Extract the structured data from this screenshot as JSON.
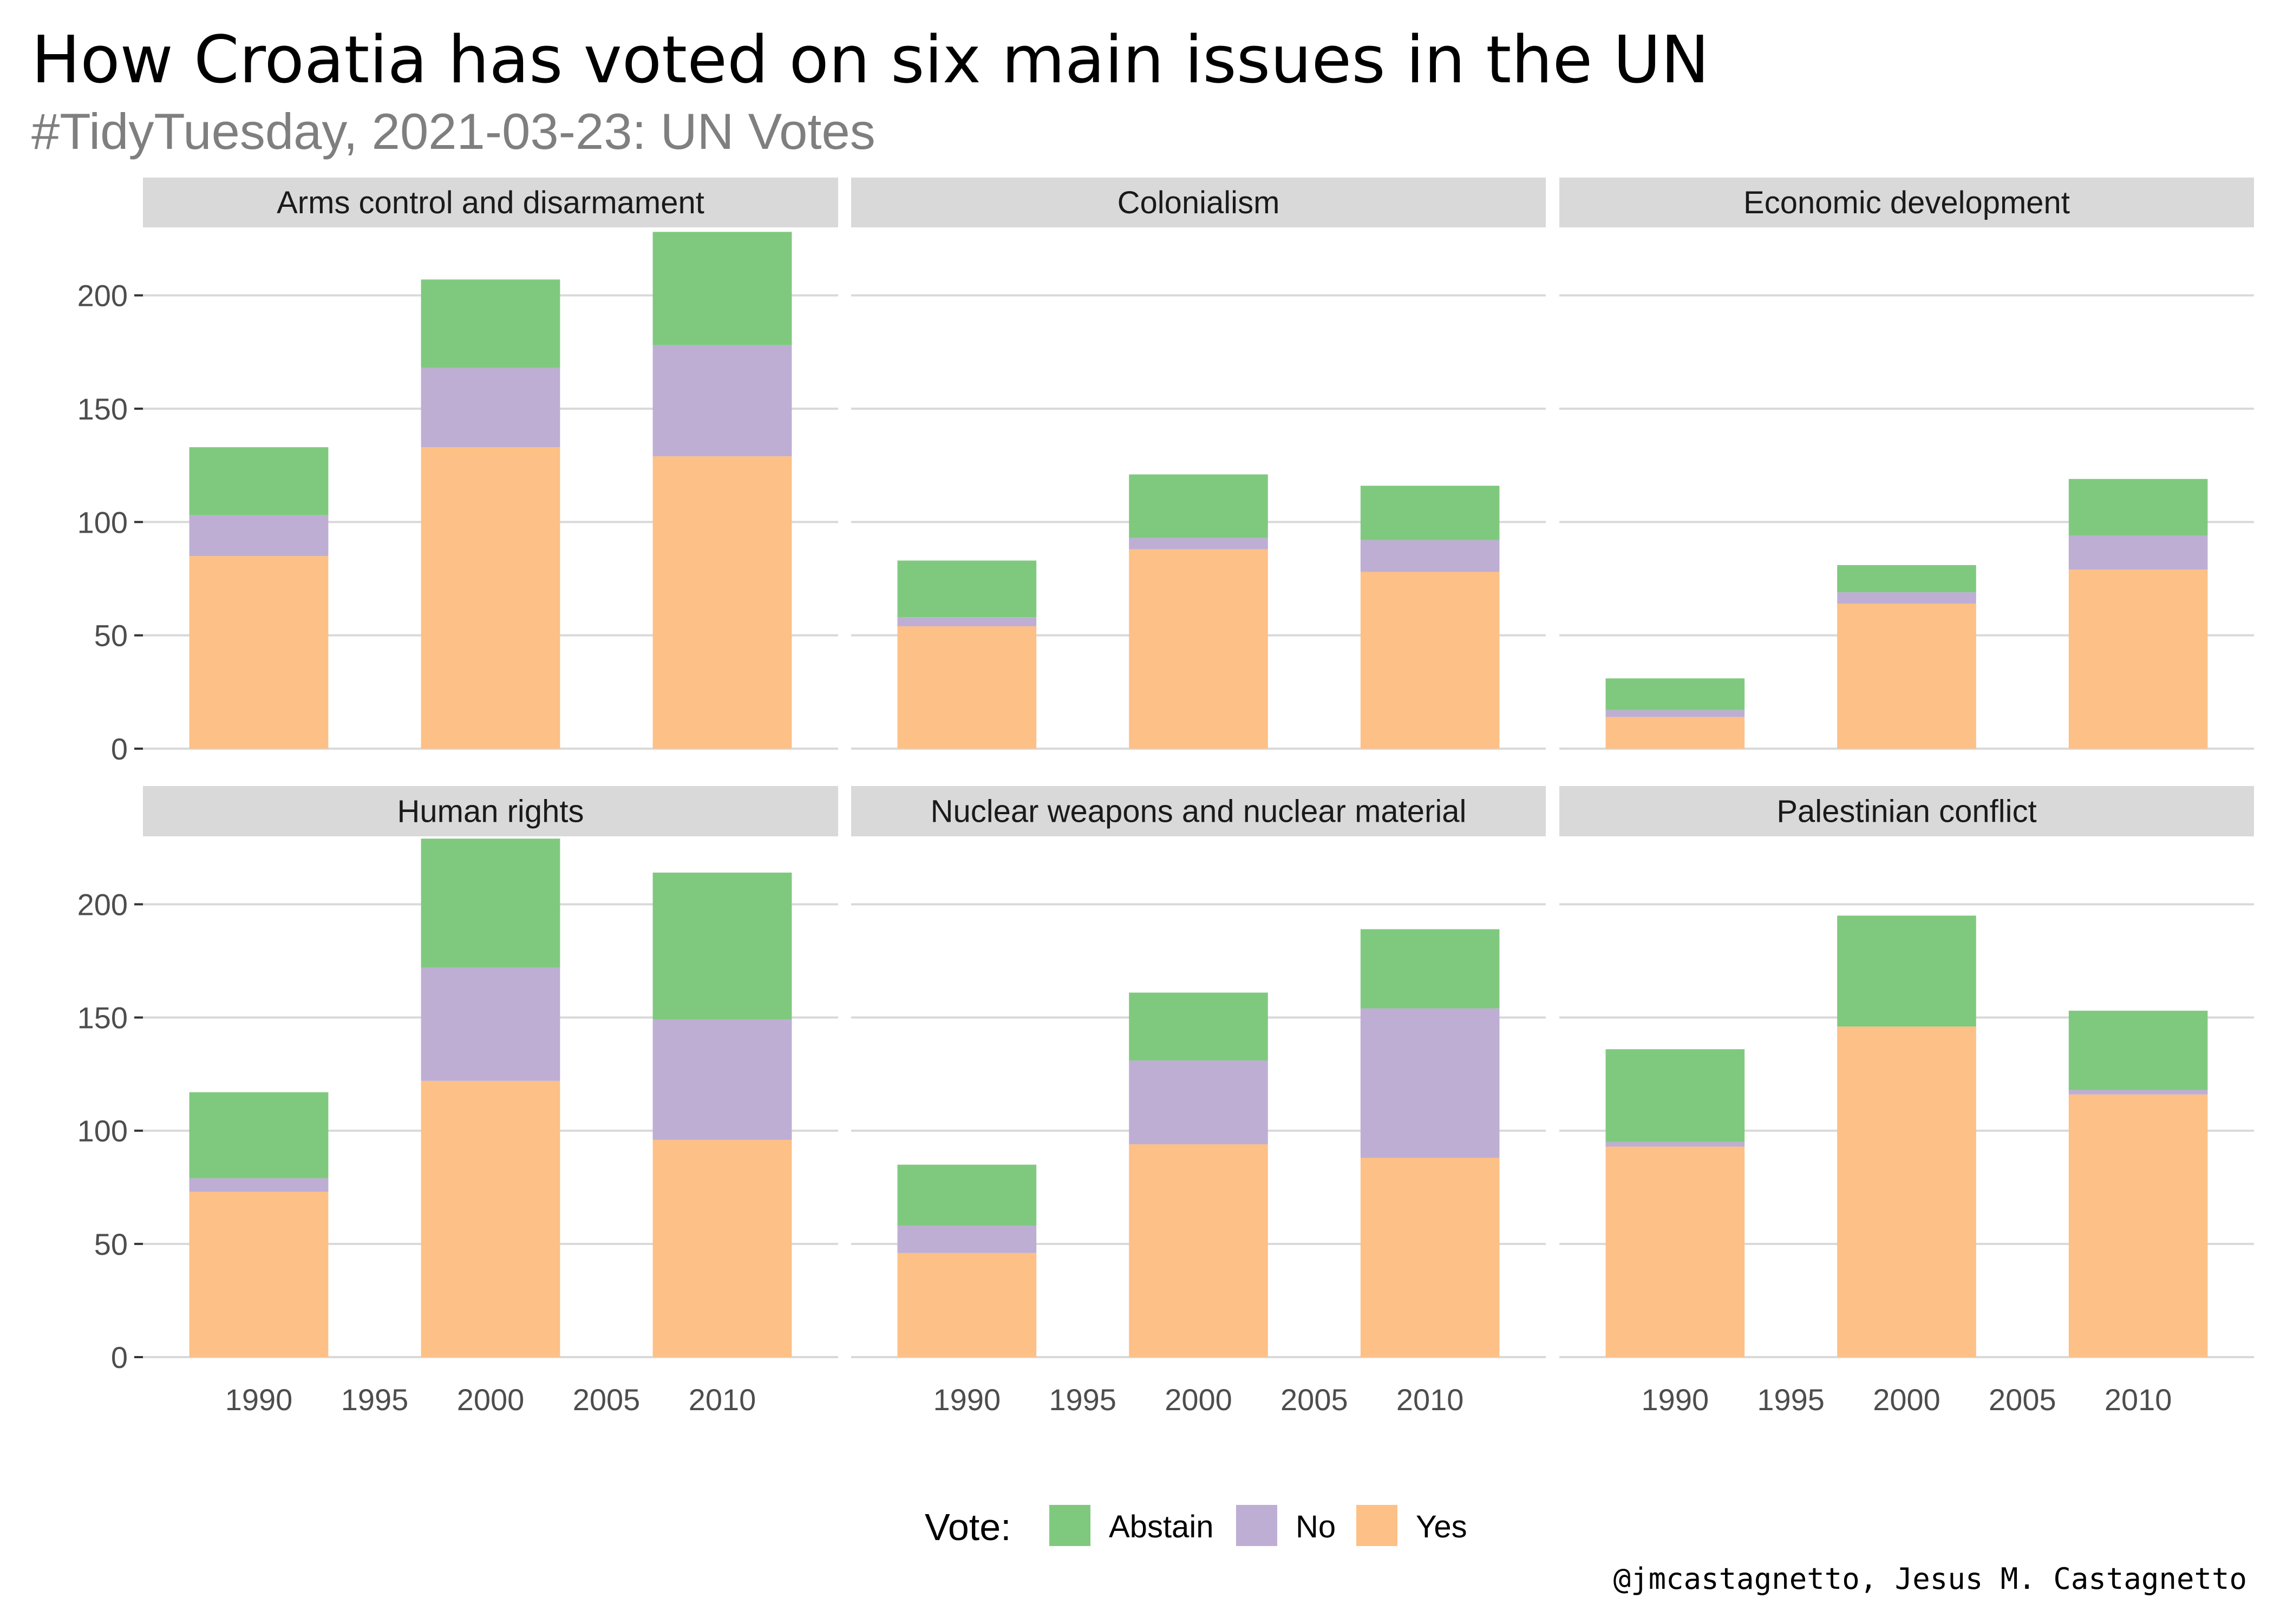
{
  "title": "How Croatia has voted on six main issues in the UN",
  "subtitle": "#TidyTuesday, 2021-03-23: UN Votes",
  "caption": "@jmcastagnetto, Jesus M. Castagnetto",
  "legend": {
    "title": "Vote:",
    "items": [
      {
        "label": "Abstain",
        "color": "#7fc97f"
      },
      {
        "label": "No",
        "color": "#beaed4"
      },
      {
        "label": "Yes",
        "color": "#fdc086"
      }
    ]
  },
  "chart_data": {
    "type": "bar",
    "stacked": true,
    "facets": [
      {
        "label": "Arms control and disarmament",
        "series": {
          "Yes": [
            85,
            133,
            129
          ],
          "No": [
            18,
            35,
            49
          ],
          "Abstain": [
            30,
            39,
            50
          ]
        }
      },
      {
        "label": "Colonialism",
        "series": {
          "Yes": [
            54,
            88,
            78
          ],
          "No": [
            4,
            5,
            14
          ],
          "Abstain": [
            25,
            28,
            24
          ]
        }
      },
      {
        "label": "Economic development",
        "series": {
          "Yes": [
            14,
            64,
            79
          ],
          "No": [
            3,
            5,
            15
          ],
          "Abstain": [
            14,
            12,
            25
          ]
        }
      },
      {
        "label": "Human rights",
        "series": {
          "Yes": [
            73,
            122,
            96
          ],
          "No": [
            6,
            50,
            53
          ],
          "Abstain": [
            38,
            57,
            65
          ]
        }
      },
      {
        "label": "Nuclear weapons and nuclear material",
        "series": {
          "Yes": [
            46,
            94,
            88
          ],
          "No": [
            12,
            37,
            66
          ],
          "Abstain": [
            27,
            30,
            35
          ]
        }
      },
      {
        "label": "Palestinian conflict",
        "series": {
          "Yes": [
            93,
            146,
            116
          ],
          "No": [
            2,
            0,
            2
          ],
          "Abstain": [
            41,
            49,
            35
          ]
        }
      }
    ],
    "x": [
      1990,
      2000,
      2010
    ],
    "stack_order": [
      "Yes",
      "No",
      "Abstain"
    ],
    "x_ticks": [
      "1990",
      "1995",
      "2000",
      "2005",
      "2010"
    ],
    "y_ticks": [
      "0",
      "50",
      "100",
      "150",
      "200"
    ],
    "xlim": [
      1985,
      2015
    ],
    "ylim": [
      0,
      230
    ],
    "grid": true,
    "legend_position": "bottom"
  }
}
